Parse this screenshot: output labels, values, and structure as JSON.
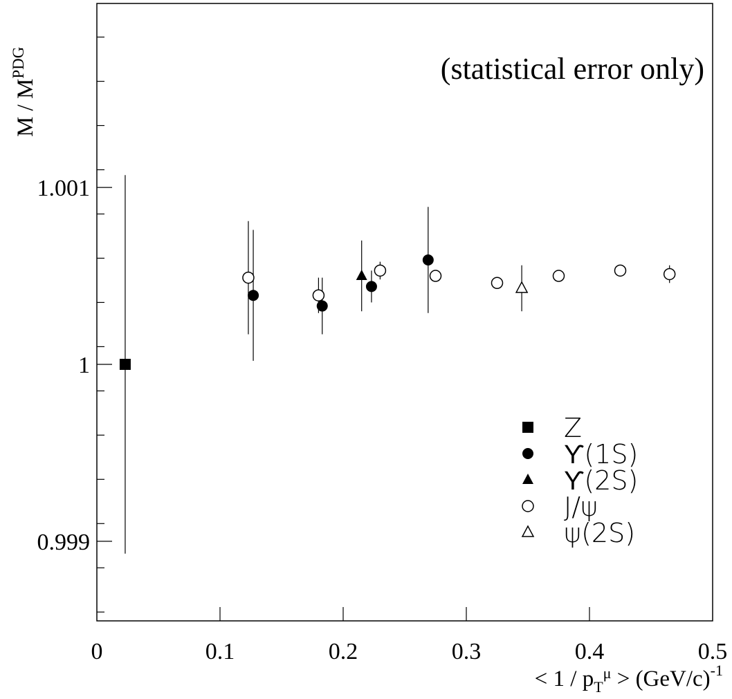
{
  "chart_data": {
    "type": "scatter",
    "annotation": "(statistical error only)",
    "xlabel": {
      "prefix": "< 1 / p",
      "sub": "T",
      "sup": "μ",
      "suffix": " >  (GeV/c)",
      "exp": "-1"
    },
    "ylabel": {
      "main": "M / M",
      "sup": "PDG"
    },
    "xlim": [
      0,
      0.5
    ],
    "ylim": [
      0.99855,
      1.00204
    ],
    "x_ticks": [
      {
        "value": 0,
        "label": "0"
      },
      {
        "value": 0.1,
        "label": "0.1"
      },
      {
        "value": 0.2,
        "label": "0.2"
      },
      {
        "value": 0.3,
        "label": "0.3"
      },
      {
        "value": 0.4,
        "label": "0.4"
      },
      {
        "value": 0.5,
        "label": "0.5"
      }
    ],
    "y_ticks": [
      {
        "value": 0.999,
        "label": "0.999"
      },
      {
        "value": 1.0,
        "label": "1"
      },
      {
        "value": 1.001,
        "label": "1.001"
      }
    ],
    "legend_position": "bottom-right",
    "series": [
      {
        "name": "Z",
        "marker": "filled-square",
        "points": [
          {
            "x": 0.023,
            "y": 1.0,
            "err": 0.00107
          }
        ]
      },
      {
        "name": "ϒ(1S)",
        "marker": "filled-circle",
        "points": [
          {
            "x": 0.127,
            "y": 1.00039,
            "err": 0.00037
          },
          {
            "x": 0.183,
            "y": 1.00033,
            "err": 0.00016
          },
          {
            "x": 0.223,
            "y": 1.00044,
            "err": 9e-05
          },
          {
            "x": 0.269,
            "y": 1.00059,
            "err": 0.0003
          }
        ]
      },
      {
        "name": "ϒ(2S)",
        "marker": "filled-triangle",
        "points": [
          {
            "x": 0.215,
            "y": 1.0005,
            "err": 0.0002
          }
        ]
      },
      {
        "name": "J/ψ",
        "marker": "open-circle",
        "points": [
          {
            "x": 0.123,
            "y": 1.00049,
            "err": 0.00032
          },
          {
            "x": 0.18,
            "y": 1.00039,
            "err": 0.0001
          },
          {
            "x": 0.23,
            "y": 1.00053,
            "err": 5e-05
          },
          {
            "x": 0.275,
            "y": 1.0005,
            "err": 0.0
          },
          {
            "x": 0.325,
            "y": 1.00046,
            "err": 0.0
          },
          {
            "x": 0.375,
            "y": 1.0005,
            "err": 0.0
          },
          {
            "x": 0.425,
            "y": 1.00053,
            "err": 0.0
          },
          {
            "x": 0.465,
            "y": 1.00051,
            "err": 5e-05
          }
        ]
      },
      {
        "name": "ψ(2S)",
        "marker": "open-triangle",
        "points": [
          {
            "x": 0.345,
            "y": 1.00043,
            "err": 0.00013
          }
        ]
      }
    ]
  }
}
